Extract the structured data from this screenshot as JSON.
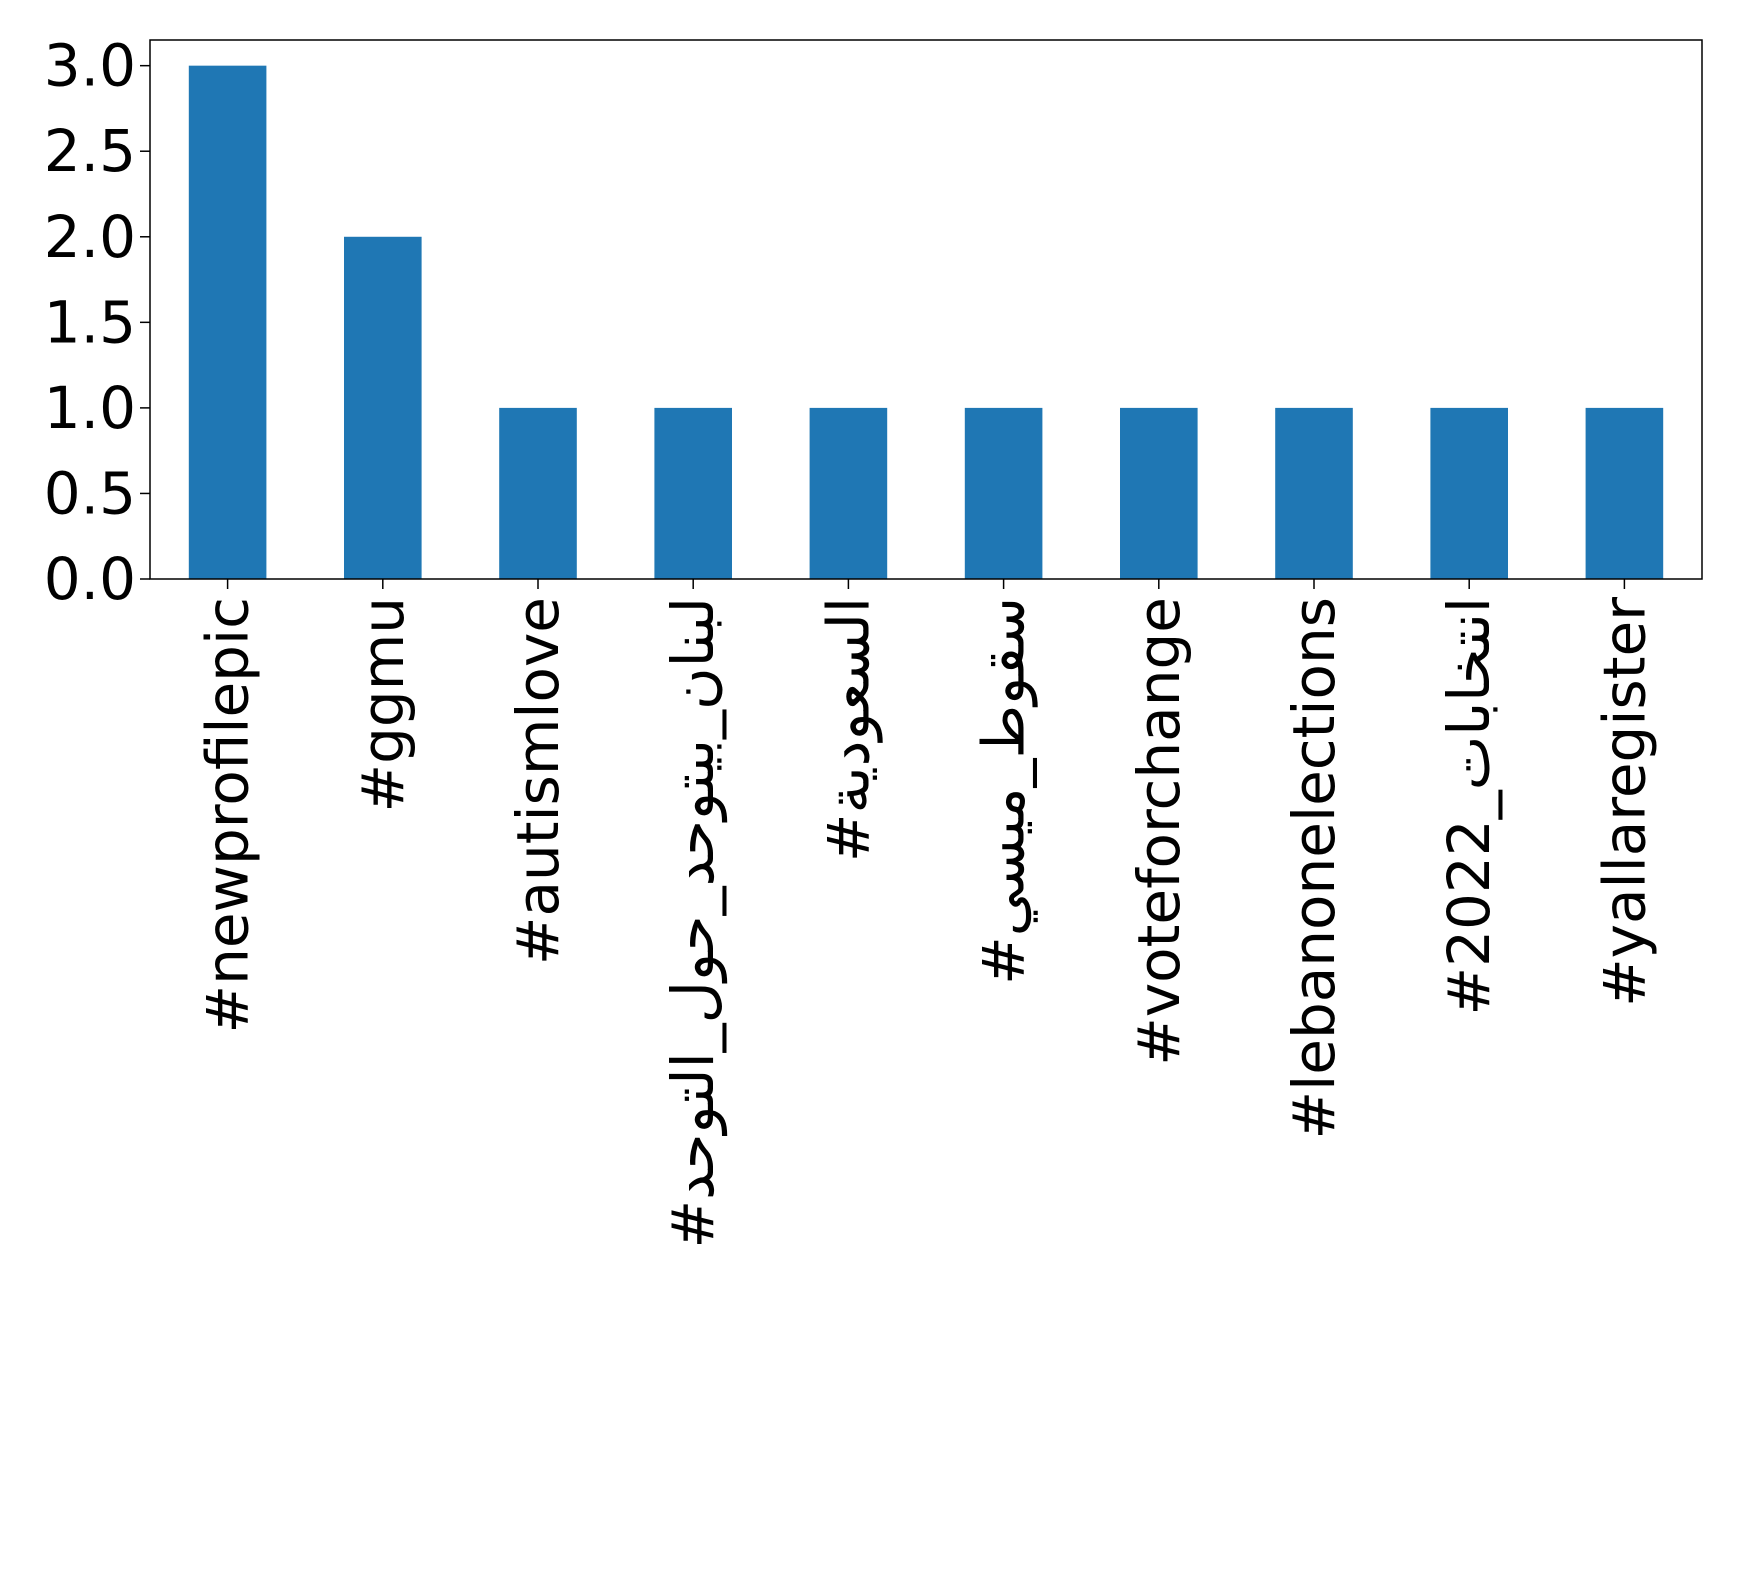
{
  "chart_data": {
    "type": "bar",
    "title": "",
    "xlabel": "",
    "ylabel": "",
    "categories": [
      "#newprofilepic",
      "#ggmu",
      "#autismlove",
      "#لبنان_بيتوحد_حول_التوحد",
      "#السعودية",
      "#سقوط_ميسي",
      "#voteforchange",
      "#lebanonelections",
      "#انتخابات_2022",
      "#yallaregister"
    ],
    "values": [
      3,
      2,
      1,
      1,
      1,
      1,
      1,
      1,
      1,
      1
    ],
    "ylim": [
      0,
      3.15
    ],
    "yticks": [
      "0.0",
      "0.5",
      "1.0",
      "1.5",
      "2.0",
      "2.5",
      "3.0"
    ],
    "bar_color": "#1f77b4",
    "grid": false,
    "legend": "none"
  }
}
